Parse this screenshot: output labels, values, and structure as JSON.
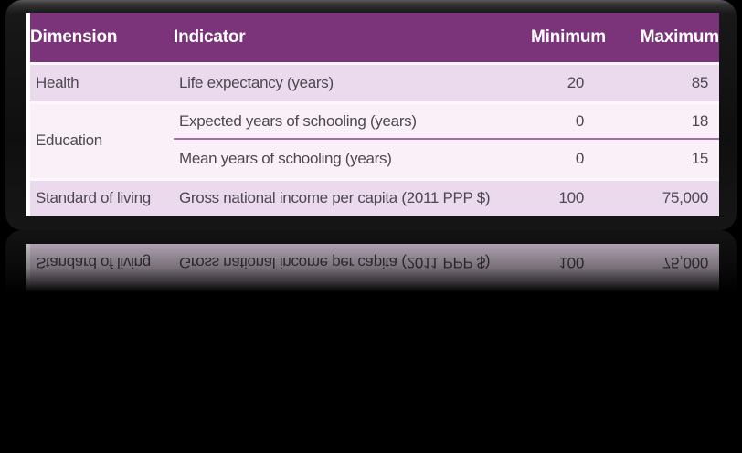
{
  "chart_data": {
    "type": "table",
    "description": "HDI dimensions and indicators with minimum and maximum goalposts",
    "columns": [
      "Dimension",
      "Indicator",
      "Minimum",
      "Maximum"
    ],
    "rows": [
      {
        "dimension": "Health",
        "indicator": "Life expectancy (years)",
        "minimum": "20",
        "maximum": "85"
      },
      {
        "dimension": "Education",
        "indicator": "Expected years of schooling (years)",
        "minimum": "0",
        "maximum": "18"
      },
      {
        "dimension": "",
        "indicator": "Mean years of schooling (years)",
        "minimum": "0",
        "maximum": "15"
      },
      {
        "dimension": "Standard of living",
        "indicator": "Gross national income per capita (2011 PPP $)",
        "minimum": "100",
        "maximum": "75,000"
      }
    ],
    "layout_hints": {
      "education_rowspan": 2,
      "legend_position": "none",
      "grid": "banded-rows"
    }
  },
  "colors": {
    "header_bg": "#7b337a",
    "row_band_dark": "#ebd9ed",
    "row_band_light": "#faf1f8",
    "divider_line": "#a86cac",
    "header_text": "#ffffff",
    "body_text": "#4d4852",
    "slide_background": "#000000",
    "card_frame": "#161616",
    "left_accent": "#ffffff"
  }
}
